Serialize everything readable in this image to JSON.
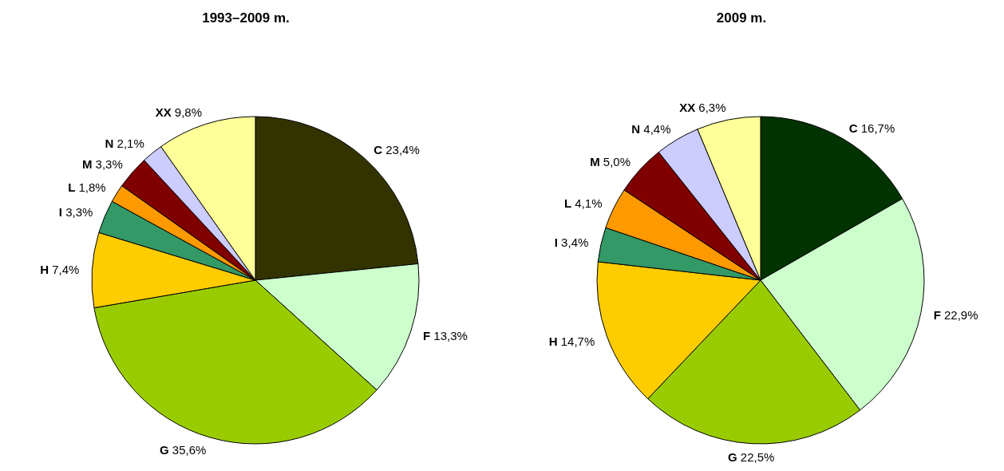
{
  "chart_data": [
    {
      "type": "pie",
      "title": "1993–2009 m.",
      "categories": [
        "C",
        "F",
        "G",
        "H",
        "I",
        "L",
        "M",
        "N",
        "XX"
      ],
      "values": [
        23.4,
        13.3,
        35.6,
        7.4,
        3.3,
        1.8,
        3.3,
        2.1,
        9.8
      ],
      "value_labels": [
        "23,4%",
        "13,3%",
        "35,6%",
        "7,4%",
        "3,3%",
        "1,8%",
        "3,3%",
        "2,1%",
        "9,8%"
      ],
      "colors": [
        "#333300",
        "#ccffcc",
        "#99cc00",
        "#ffcc00",
        "#339966",
        "#ff9900",
        "#800000",
        "#ccccff",
        "#ffff99"
      ],
      "legend": false
    },
    {
      "type": "pie",
      "title": "2009 m.",
      "categories": [
        "C",
        "F",
        "G",
        "H",
        "I",
        "L",
        "M",
        "N",
        "XX"
      ],
      "values": [
        16.7,
        22.9,
        22.5,
        14.7,
        3.4,
        4.1,
        5.0,
        4.4,
        6.3
      ],
      "value_labels": [
        "16,7%",
        "22,9%",
        "22,5%",
        "14,7%",
        "3,4%",
        "4,1%",
        "5,0%",
        "4,4%",
        "6,3%"
      ],
      "colors": [
        "#003300",
        "#ccffcc",
        "#99cc00",
        "#ffcc00",
        "#339966",
        "#ff9900",
        "#800000",
        "#ccccff",
        "#ffff99"
      ],
      "legend": false
    }
  ]
}
